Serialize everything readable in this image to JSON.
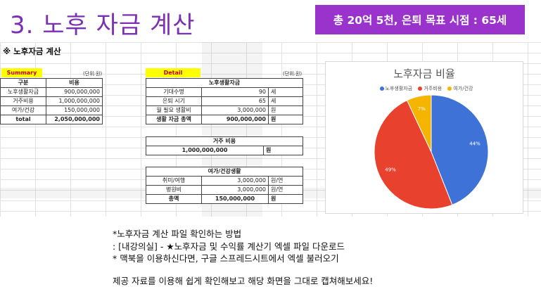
{
  "title": "3. 노후 자금 계산",
  "banner": "총 20억 5천, 은퇴 목표 시점 : 65세",
  "sheet": {
    "title": "※ 노후자금 계산",
    "summary": {
      "tag": "Summary",
      "unit": "(단위:원)",
      "headers": [
        "구분",
        "비용"
      ],
      "rows": [
        {
          "label": "노후생활자금",
          "value": "900,000,000"
        },
        {
          "label": "거주비용",
          "value": "1,000,000,000"
        },
        {
          "label": "여가/건강",
          "value": "150,000,000"
        },
        {
          "label": "total",
          "value": "2,050,000,000"
        }
      ]
    },
    "detail": {
      "tag": "Detail",
      "unit": "(단위:원)",
      "living": {
        "header": "노후생활자금",
        "rows": [
          {
            "label": "기대수명",
            "value": "90",
            "unit": "세"
          },
          {
            "label": "은퇴 시기",
            "value": "65",
            "unit": "세"
          },
          {
            "label": "월 필요 생활비",
            "value": "3,000,000",
            "unit": "원"
          },
          {
            "label": "생활 자금 총액",
            "value": "900,000,000",
            "unit": "원"
          }
        ]
      },
      "housing": {
        "header": "거주 비용",
        "value": "1,000,000,000",
        "unit": "원"
      },
      "leisure": {
        "header": "여가/건강생활",
        "rows": [
          {
            "label": "취미/여행",
            "value": "3,000,000",
            "unit": "원/연"
          },
          {
            "label": "병원비",
            "value": "3,000,000",
            "unit": "원/연"
          },
          {
            "label": "총액",
            "value": "150,000,000",
            "unit": "원"
          }
        ]
      }
    }
  },
  "chart_data": {
    "type": "pie",
    "title": "노후자금 비율",
    "categories": [
      "노후생활자금",
      "거주비용",
      "여가/건강"
    ],
    "values": [
      44,
      49,
      7
    ],
    "labels": [
      "44%",
      "49%",
      "7%"
    ],
    "colors": [
      "#3f72d6",
      "#e8412e",
      "#f5b400"
    ],
    "legend_position": "top"
  },
  "notes": {
    "line1": "*노후자금 계산 파일 확인하는 방법",
    "line2": ": [내강의실] - ★노후자금 및 수익률 계산기 엑셀 파일 다운로드",
    "line3": "* 맥북을 이용하신다면, 구글 스프레드시트에서 엑셀 불러오기",
    "line4": "제공 자료를 이용해 쉽게 확인해보고 해당 화면을 그대로 캡쳐해보세요!"
  }
}
